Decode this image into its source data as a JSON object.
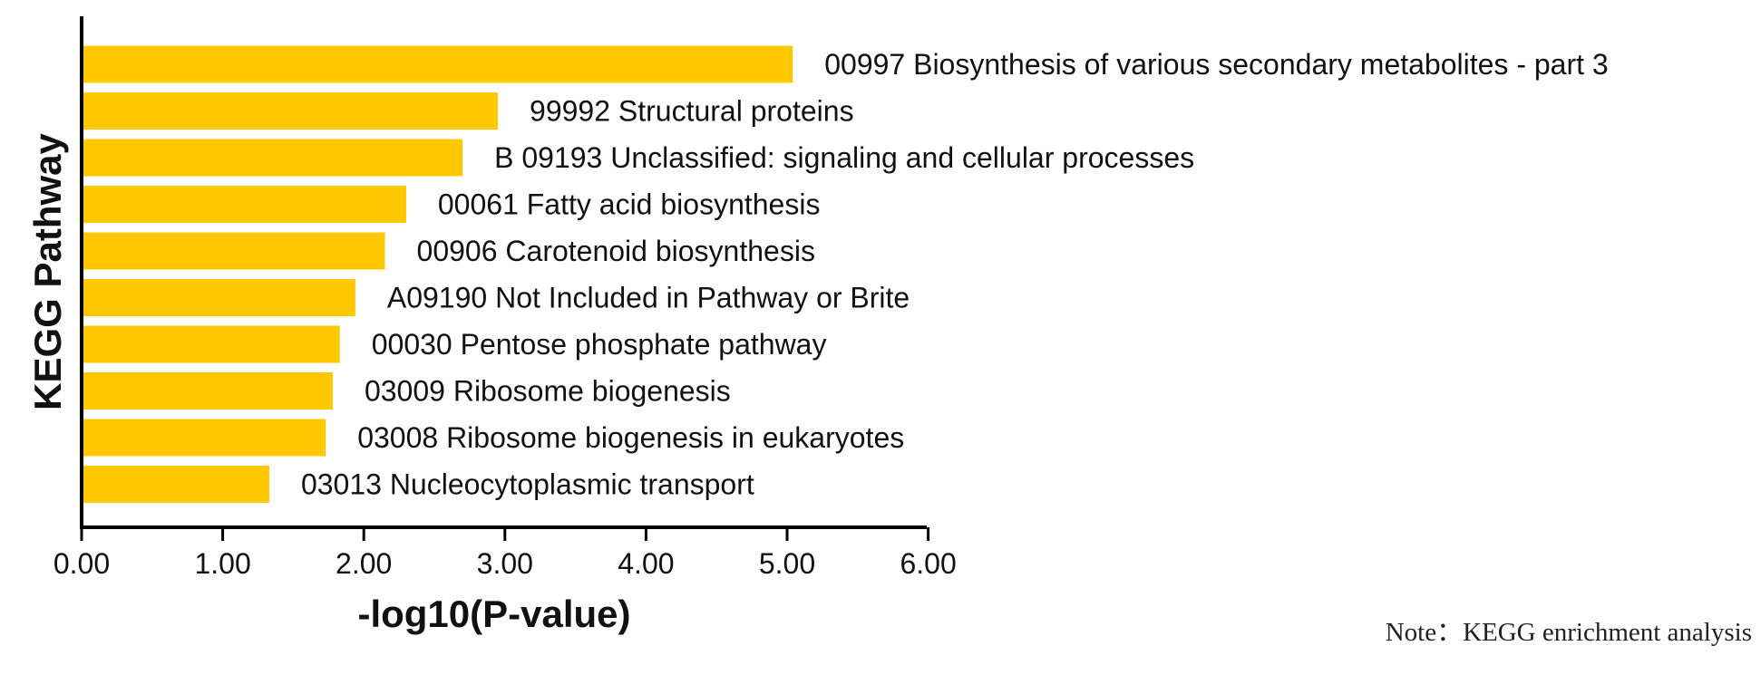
{
  "chart_data": {
    "type": "bar",
    "orientation": "horizontal",
    "categories": [
      "00997 Biosynthesis of various secondary metabolites - part 3",
      "99992 Structural proteins",
      "B  09193 Unclassified: signaling and cellular processes",
      "00061 Fatty acid biosynthesis",
      "00906 Carotenoid biosynthesis",
      "A09190 Not Included in Pathway or Brite",
      "00030 Pentose phosphate pathway",
      "03009 Ribosome biogenesis",
      "03008 Ribosome biogenesis in eukaryotes",
      "03013 Nucleocytoplasmic transport"
    ],
    "values": [
      5.04,
      2.95,
      2.7,
      2.3,
      2.15,
      1.94,
      1.83,
      1.78,
      1.73,
      1.33
    ],
    "xlabel": "-log10(P-value)",
    "ylabel": "KEGG Pathway",
    "xlim": [
      0,
      6
    ],
    "xticks": [
      "0.00",
      "1.00",
      "2.00",
      "3.00",
      "4.00",
      "5.00",
      "6.00"
    ],
    "bar_color": "#FFC800",
    "grid": false,
    "legend": "none"
  },
  "note": "Note：KEGG enrichment analysis"
}
